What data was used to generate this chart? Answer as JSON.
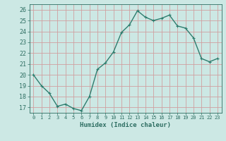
{
  "x": [
    0,
    1,
    2,
    3,
    4,
    5,
    6,
    7,
    8,
    9,
    10,
    11,
    12,
    13,
    14,
    15,
    16,
    17,
    18,
    19,
    20,
    21,
    22,
    23
  ],
  "y": [
    20,
    19,
    18.3,
    17.1,
    17.3,
    16.9,
    16.7,
    18.0,
    20.5,
    21.1,
    22.1,
    23.9,
    24.6,
    25.9,
    25.3,
    25.0,
    25.2,
    25.5,
    24.5,
    24.3,
    23.4,
    21.5,
    21.2,
    21.5
  ],
  "line_color": "#2e7d6e",
  "marker": "+",
  "bg_color": "#cce8e4",
  "grid_color": "#d0a0a0",
  "xlabel": "Humidex (Indice chaleur)",
  "ylabel_ticks": [
    17,
    18,
    19,
    20,
    21,
    22,
    23,
    24,
    25,
    26
  ],
  "xtick_labels": [
    "0",
    "1",
    "2",
    "3",
    "4",
    "5",
    "6",
    "7",
    "8",
    "9",
    "10",
    "11",
    "12",
    "13",
    "14",
    "15",
    "16",
    "17",
    "18",
    "19",
    "20",
    "21",
    "22",
    "23"
  ],
  "ylim": [
    16.5,
    26.5
  ],
  "xlim": [
    -0.5,
    23.5
  ],
  "tick_color": "#2e6e62",
  "label_color": "#2e6e62",
  "marker_size": 3,
  "linewidth": 1.0
}
